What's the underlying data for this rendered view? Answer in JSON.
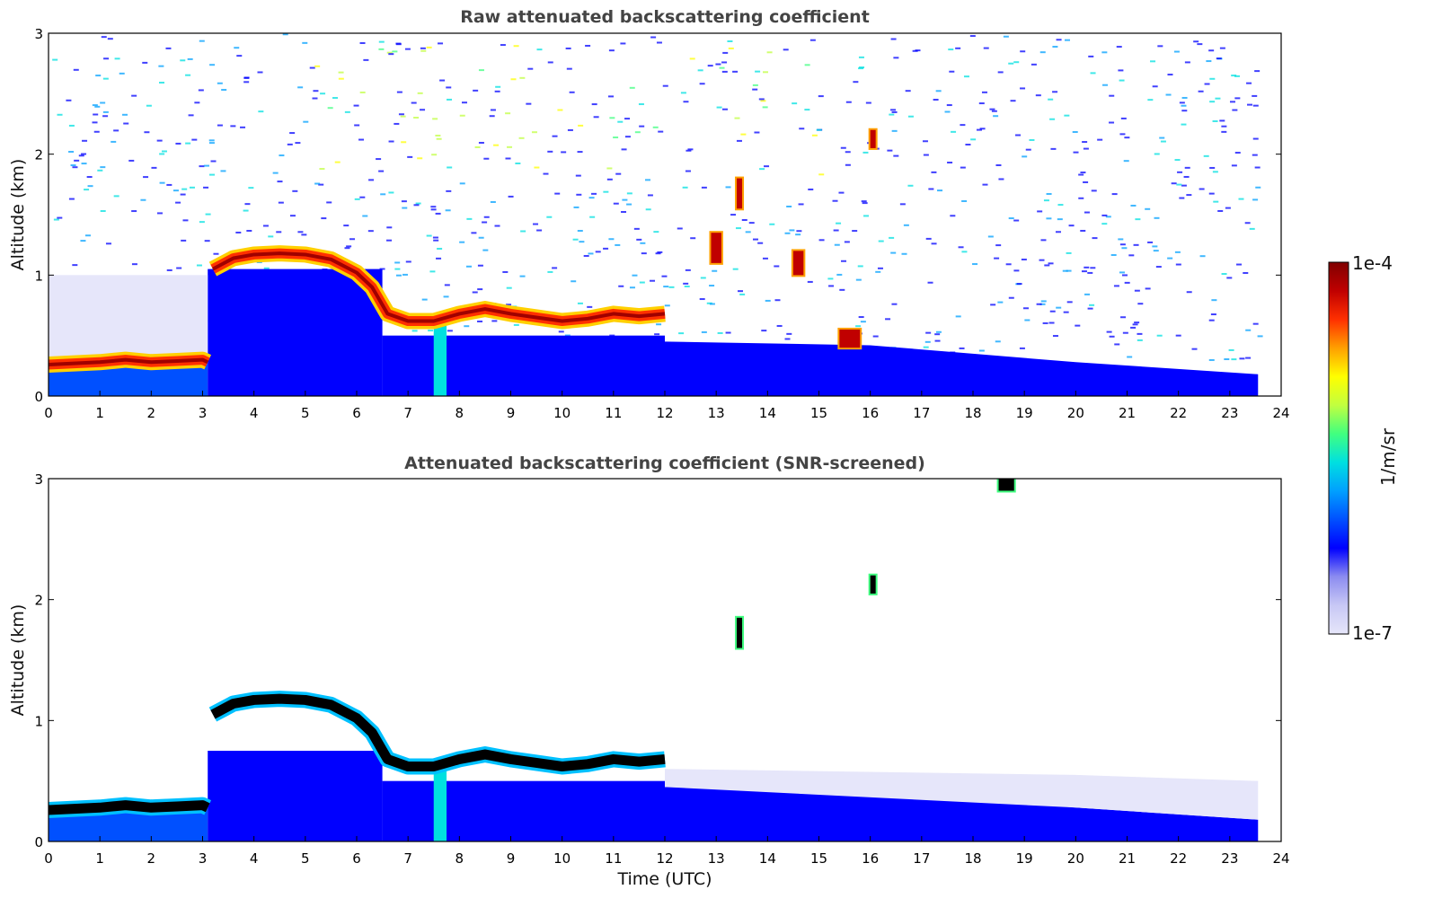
{
  "chart_data": [
    {
      "type": "heatmap",
      "title": "Raw attenuated backscattering coefficient",
      "xlabel": "",
      "ylabel": "Altitude (km)",
      "xlim": [
        0,
        24
      ],
      "ylim": [
        0,
        3
      ],
      "x_ticks": [
        "0",
        "1",
        "2",
        "3",
        "4",
        "5",
        "6",
        "7",
        "8",
        "9",
        "10",
        "11",
        "12",
        "13",
        "14",
        "15",
        "16",
        "17",
        "18",
        "19",
        "20",
        "21",
        "22",
        "23",
        "24"
      ],
      "y_ticks": [
        "0",
        "1",
        "2",
        "3"
      ],
      "layers": [
        {
          "kind": "cloud_layer",
          "x": [
            0,
            0.5,
            1,
            1.5,
            2,
            2.5,
            3,
            3.1
          ],
          "y": [
            0.26,
            0.27,
            0.28,
            0.3,
            0.28,
            0.29,
            0.3,
            0.28
          ]
        },
        {
          "kind": "cloud_layer",
          "x": [
            3.2,
            3.6,
            4,
            4.5,
            5,
            5.5,
            6,
            6.3,
            6.6,
            7,
            7.5,
            8,
            8.5,
            9,
            9.5,
            10,
            10.5,
            11,
            11.5,
            12
          ],
          "y": [
            1.05,
            1.14,
            1.17,
            1.18,
            1.17,
            1.13,
            1.02,
            0.9,
            0.68,
            0.62,
            0.62,
            0.68,
            0.72,
            0.68,
            0.65,
            0.62,
            0.64,
            0.68,
            0.66,
            0.68
          ]
        },
        {
          "kind": "cloud_patch",
          "x": [
            13.4,
            13.45
          ],
          "y": [
            1.55,
            1.8
          ]
        },
        {
          "kind": "cloud_patch",
          "x": [
            16.0,
            16.05
          ],
          "y": [
            2.05,
            2.2
          ]
        },
        {
          "kind": "cloud_patch",
          "x": [
            12.9,
            13.1
          ],
          "y": [
            1.1,
            1.35
          ]
        },
        {
          "kind": "cloud_patch",
          "x": [
            14.5,
            14.7
          ],
          "y": [
            1.0,
            1.2
          ]
        },
        {
          "kind": "cloud_patch",
          "x": [
            15.4,
            15.8
          ],
          "y": [
            0.4,
            0.55
          ]
        }
      ]
    },
    {
      "type": "heatmap",
      "title": "Attenuated backscattering coefficient (SNR-screened)",
      "xlabel": "Time (UTC)",
      "ylabel": "Altitude (km)",
      "xlim": [
        0,
        24
      ],
      "ylim": [
        0,
        3
      ],
      "x_ticks": [
        "0",
        "1",
        "2",
        "3",
        "4",
        "5",
        "6",
        "7",
        "8",
        "9",
        "10",
        "11",
        "12",
        "13",
        "14",
        "15",
        "16",
        "17",
        "18",
        "19",
        "20",
        "21",
        "22",
        "23",
        "24"
      ],
      "y_ticks": [
        "0",
        "1",
        "2",
        "3"
      ],
      "layers": [
        {
          "kind": "cloud_layer",
          "x": [
            0,
            0.5,
            1,
            1.5,
            2,
            2.5,
            3,
            3.1
          ],
          "y": [
            0.26,
            0.27,
            0.28,
            0.3,
            0.28,
            0.29,
            0.3,
            0.28
          ]
        },
        {
          "kind": "cloud_layer",
          "x": [
            3.2,
            3.6,
            4,
            4.5,
            5,
            5.5,
            6,
            6.3,
            6.6,
            7,
            7.5,
            8,
            8.5,
            9,
            9.5,
            10,
            10.5,
            11,
            11.5,
            12
          ],
          "y": [
            1.05,
            1.14,
            1.17,
            1.18,
            1.17,
            1.13,
            1.02,
            0.9,
            0.68,
            0.62,
            0.62,
            0.68,
            0.72,
            0.68,
            0.65,
            0.62,
            0.64,
            0.68,
            0.66,
            0.68
          ]
        },
        {
          "kind": "cloud_patch",
          "x": [
            13.4,
            13.45
          ],
          "y": [
            1.6,
            1.85
          ]
        },
        {
          "kind": "cloud_patch",
          "x": [
            16.0,
            16.05
          ],
          "y": [
            2.05,
            2.2
          ]
        },
        {
          "kind": "cloud_patch",
          "x": [
            18.5,
            18.8
          ],
          "y": [
            2.9,
            3.0
          ]
        }
      ]
    }
  ],
  "colorbar": {
    "label": "1/m/sr",
    "max_label": "1e-4",
    "min_label": "1e-7",
    "scale": "log",
    "colormap": [
      "#e6e6fa",
      "#c8c8f5",
      "#8c8cf0",
      "#0000ff",
      "#0050ff",
      "#00a0ff",
      "#00e0e0",
      "#40ff80",
      "#c0ff40",
      "#ffff00",
      "#ffa000",
      "#ff3000",
      "#c00000",
      "#800000"
    ]
  }
}
